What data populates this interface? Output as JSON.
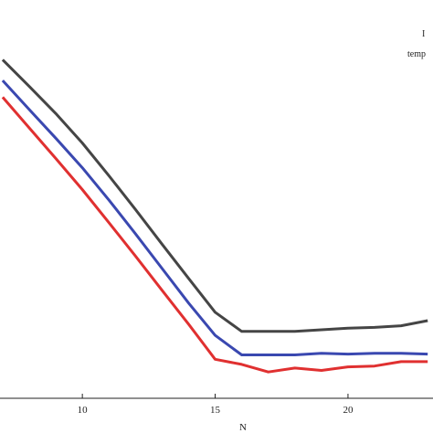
{
  "chart_data": {
    "type": "line",
    "xlabel": "N",
    "xlim": [
      6.9,
      23.2
    ],
    "ylim": [
      0,
      1
    ],
    "xticks": [
      10,
      15,
      20
    ],
    "xtick_labels": [
      "10",
      "15",
      "20"
    ],
    "legend": {
      "position": "top-right",
      "entries": [
        "I",
        "temp"
      ]
    },
    "grid": false,
    "series": [
      {
        "color": "#454545",
        "x": [
          7,
          8,
          9,
          10,
          11,
          12,
          13,
          14,
          15,
          16,
          17,
          18,
          19,
          20,
          21,
          22,
          23
        ],
        "y": [
          0.85,
          0.783,
          0.715,
          0.641,
          0.559,
          0.474,
          0.387,
          0.301,
          0.216,
          0.168,
          0.168,
          0.168,
          0.172,
          0.176,
          0.178,
          0.182,
          0.195
        ]
      },
      {
        "color": "#3a48b0",
        "x": [
          7,
          8,
          9,
          10,
          11,
          12,
          13,
          14,
          15,
          16,
          17,
          18,
          19,
          20,
          21,
          22,
          23
        ],
        "y": [
          0.798,
          0.725,
          0.653,
          0.579,
          0.498,
          0.413,
          0.326,
          0.239,
          0.158,
          0.109,
          0.109,
          0.109,
          0.113,
          0.111,
          0.113,
          0.113,
          0.111
        ]
      },
      {
        "color": "#e03030",
        "x": [
          7,
          8,
          9,
          10,
          11,
          12,
          13,
          14,
          15,
          16,
          17,
          18,
          19,
          20,
          21,
          22,
          23
        ],
        "y": [
          0.756,
          0.679,
          0.602,
          0.524,
          0.441,
          0.357,
          0.271,
          0.186,
          0.098,
          0.085,
          0.066,
          0.076,
          0.07,
          0.079,
          0.081,
          0.092,
          0.092
        ]
      }
    ]
  }
}
